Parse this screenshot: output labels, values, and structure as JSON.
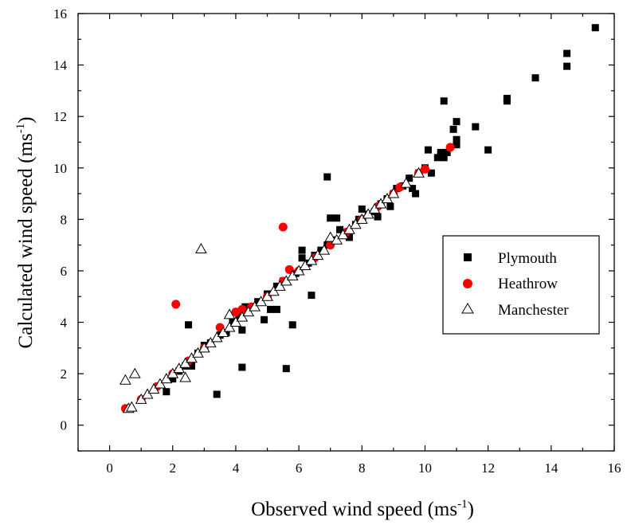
{
  "chart_data": {
    "type": "scatter",
    "xlabel": "Observed wind speed (ms",
    "xlabel_sup": "-1",
    "xlabel_close": ")",
    "ylabel": "Calculated wind speed  (ms",
    "ylabel_sup": "-1",
    "ylabel_close": ")",
    "xlim": [
      -1,
      16
    ],
    "ylim": [
      -1,
      16
    ],
    "xticks": [
      "0",
      "2",
      "4",
      "6",
      "8",
      "10",
      "12",
      "14",
      "16"
    ],
    "yticks": [
      "0",
      "2",
      "4",
      "6",
      "8",
      "10",
      "12",
      "14",
      "16"
    ],
    "grid": false,
    "legend_position": "right-middle",
    "series": [
      {
        "name": "Plymouth",
        "marker": "square",
        "color": "#000000",
        "points": [
          [
            1.8,
            1.3
          ],
          [
            2.0,
            1.8
          ],
          [
            2.2,
            2.1
          ],
          [
            2.4,
            2.3
          ],
          [
            2.5,
            3.9
          ],
          [
            2.6,
            2.3
          ],
          [
            2.8,
            2.8
          ],
          [
            3.0,
            3.1
          ],
          [
            3.2,
            3.2
          ],
          [
            3.4,
            1.2
          ],
          [
            3.5,
            3.5
          ],
          [
            3.7,
            3.6
          ],
          [
            3.9,
            4.0
          ],
          [
            4.1,
            4.2
          ],
          [
            4.2,
            2.25
          ],
          [
            4.2,
            3.7
          ],
          [
            4.3,
            4.6
          ],
          [
            4.5,
            4.6
          ],
          [
            4.7,
            4.8
          ],
          [
            4.9,
            4.1
          ],
          [
            5.0,
            5.1
          ],
          [
            5.1,
            4.5
          ],
          [
            5.3,
            4.5
          ],
          [
            5.3,
            5.4
          ],
          [
            5.5,
            5.6
          ],
          [
            5.6,
            2.2
          ],
          [
            5.8,
            3.9
          ],
          [
            5.9,
            5.9
          ],
          [
            6.1,
            6.5
          ],
          [
            6.1,
            6.8
          ],
          [
            6.3,
            6.3
          ],
          [
            6.4,
            5.05
          ],
          [
            6.5,
            6.6
          ],
          [
            6.7,
            6.8
          ],
          [
            6.9,
            9.65
          ],
          [
            6.9,
            7.0
          ],
          [
            7.0,
            8.05
          ],
          [
            7.1,
            7.2
          ],
          [
            7.2,
            8.05
          ],
          [
            7.3,
            7.6
          ],
          [
            7.5,
            7.5
          ],
          [
            7.6,
            7.3
          ],
          [
            7.8,
            7.8
          ],
          [
            7.9,
            8.0
          ],
          [
            8.0,
            8.4
          ],
          [
            8.2,
            8.2
          ],
          [
            8.4,
            8.3
          ],
          [
            8.5,
            8.1
          ],
          [
            8.6,
            8.6
          ],
          [
            8.8,
            8.8
          ],
          [
            8.9,
            8.5
          ],
          [
            9.0,
            9.0
          ],
          [
            9.1,
            9.2
          ],
          [
            9.3,
            9.3
          ],
          [
            9.5,
            9.6
          ],
          [
            9.6,
            9.2
          ],
          [
            9.7,
            9.0
          ],
          [
            9.8,
            9.8
          ],
          [
            10.0,
            10.0
          ],
          [
            10.1,
            10.7
          ],
          [
            10.2,
            9.8
          ],
          [
            10.4,
            10.4
          ],
          [
            10.5,
            10.5
          ],
          [
            10.5,
            10.6
          ],
          [
            10.6,
            10.4
          ],
          [
            10.6,
            12.6
          ],
          [
            10.7,
            10.6
          ],
          [
            10.9,
            11.5
          ],
          [
            11.0,
            11.1
          ],
          [
            11.0,
            11.8
          ],
          [
            11.0,
            10.9
          ],
          [
            11.6,
            11.6
          ],
          [
            12.0,
            10.7
          ],
          [
            12.6,
            12.7
          ],
          [
            12.6,
            12.6
          ],
          [
            13.5,
            13.5
          ],
          [
            14.5,
            14.45
          ],
          [
            14.5,
            13.95
          ],
          [
            15.4,
            15.45
          ]
        ]
      },
      {
        "name": "Heathrow",
        "marker": "circle",
        "color": "#ff0000",
        "points": [
          [
            0.5,
            0.65
          ],
          [
            1.0,
            1.0
          ],
          [
            1.5,
            1.5
          ],
          [
            2.0,
            2.0
          ],
          [
            2.1,
            4.7
          ],
          [
            2.5,
            2.5
          ],
          [
            3.0,
            3.0
          ],
          [
            3.5,
            3.8
          ],
          [
            4.0,
            4.4
          ],
          [
            4.2,
            4.5
          ],
          [
            4.5,
            4.6
          ],
          [
            5.0,
            5.0
          ],
          [
            5.5,
            7.7
          ],
          [
            5.5,
            5.6
          ],
          [
            5.7,
            6.05
          ],
          [
            6.0,
            6.0
          ],
          [
            6.5,
            6.5
          ],
          [
            7.0,
            7.0
          ],
          [
            7.5,
            7.5
          ],
          [
            8.0,
            8.0
          ],
          [
            8.5,
            8.5
          ],
          [
            9.0,
            9.0
          ],
          [
            9.2,
            9.25
          ],
          [
            9.8,
            9.8
          ],
          [
            10.0,
            9.95
          ],
          [
            10.8,
            10.8
          ]
        ]
      },
      {
        "name": "Manchester",
        "marker": "triangle",
        "color": "#000000",
        "points": [
          [
            0.5,
            1.75
          ],
          [
            0.6,
            0.65
          ],
          [
            0.8,
            2.0
          ],
          [
            0.7,
            0.7
          ],
          [
            1.0,
            1.0
          ],
          [
            1.2,
            1.2
          ],
          [
            1.4,
            1.4
          ],
          [
            1.6,
            1.6
          ],
          [
            1.8,
            1.8
          ],
          [
            2.0,
            2.0
          ],
          [
            2.2,
            2.2
          ],
          [
            2.4,
            1.85
          ],
          [
            2.4,
            2.4
          ],
          [
            2.6,
            2.6
          ],
          [
            2.8,
            2.8
          ],
          [
            2.9,
            6.85
          ],
          [
            3.0,
            3.0
          ],
          [
            3.2,
            3.2
          ],
          [
            3.4,
            3.4
          ],
          [
            3.6,
            3.6
          ],
          [
            3.8,
            3.8
          ],
          [
            3.8,
            4.3
          ],
          [
            4.0,
            4.0
          ],
          [
            4.2,
            4.2
          ],
          [
            4.4,
            4.4
          ],
          [
            4.6,
            4.6
          ],
          [
            4.8,
            4.8
          ],
          [
            5.0,
            5.0
          ],
          [
            5.2,
            5.2
          ],
          [
            5.4,
            5.4
          ],
          [
            5.6,
            5.6
          ],
          [
            5.8,
            5.8
          ],
          [
            6.0,
            6.0
          ],
          [
            6.2,
            6.2
          ],
          [
            6.4,
            6.4
          ],
          [
            6.6,
            6.6
          ],
          [
            6.8,
            6.8
          ],
          [
            7.0,
            7.3
          ],
          [
            7.2,
            7.2
          ],
          [
            7.4,
            7.4
          ],
          [
            7.6,
            7.6
          ],
          [
            7.8,
            7.8
          ],
          [
            8.0,
            8.0
          ],
          [
            8.2,
            8.2
          ],
          [
            8.4,
            8.4
          ],
          [
            8.6,
            8.6
          ],
          [
            8.8,
            8.8
          ],
          [
            9.0,
            9.0
          ],
          [
            9.4,
            9.4
          ],
          [
            9.8,
            9.8
          ]
        ]
      }
    ]
  }
}
